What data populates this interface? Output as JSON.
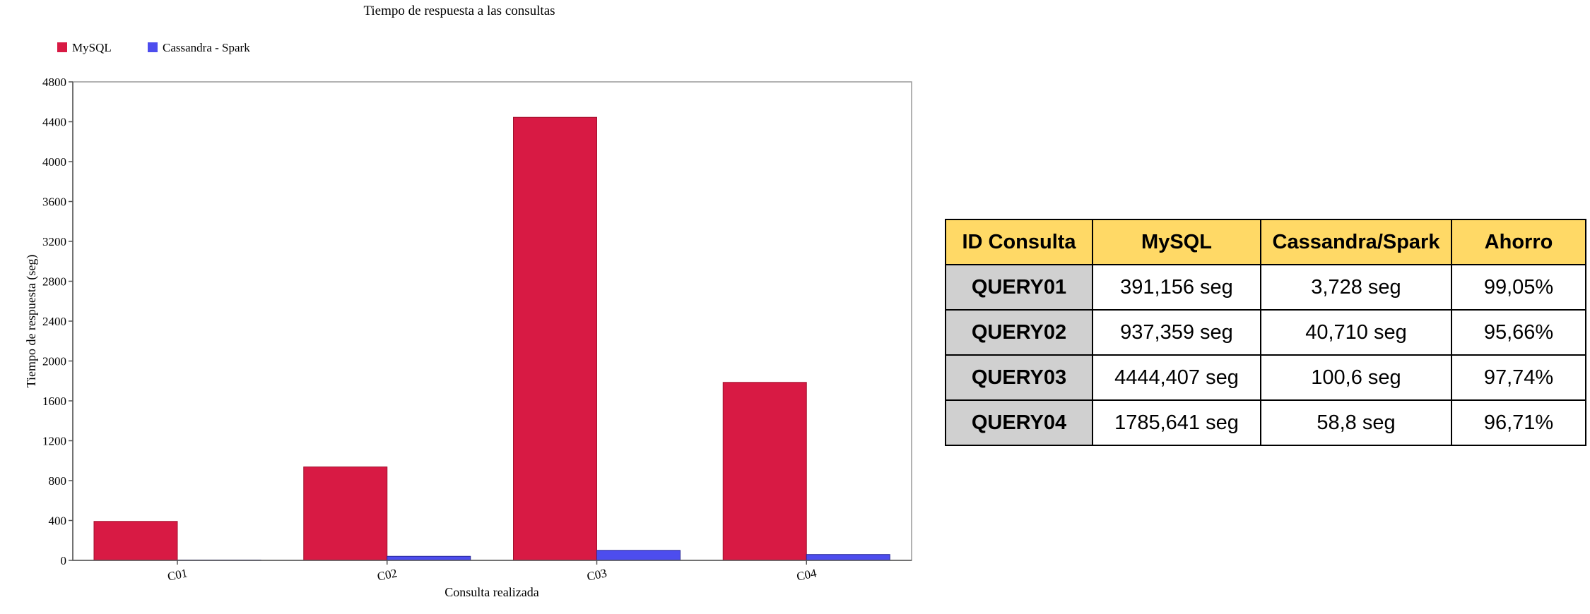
{
  "chart_data": {
    "type": "bar",
    "title": "Tiempo de respuesta a las consultas",
    "xlabel": "Consulta realizada",
    "ylabel": "Tiempo de respuesta (seg)",
    "categories": [
      "C01",
      "C02",
      "C03",
      "C04"
    ],
    "series": [
      {
        "name": "MySQL",
        "color": "#d81a44",
        "values": [
          391.156,
          937.359,
          4444.407,
          1785.641
        ]
      },
      {
        "name": "Cassandra - Spark",
        "color": "#4d4dee",
        "values": [
          3.728,
          40.71,
          100.6,
          58.8
        ]
      }
    ],
    "ylim": [
      0,
      4800
    ],
    "yticks": [
      "0",
      "400",
      "800",
      "1200",
      "1600",
      "2000",
      "2400",
      "2800",
      "3200",
      "3600",
      "4000",
      "4400",
      "4800"
    ],
    "legend": "top-left",
    "grid": false
  },
  "table": {
    "headers": [
      "ID Consulta",
      "MySQL",
      "Cassandra/Spark",
      "Ahorro"
    ],
    "rows": [
      [
        "QUERY01",
        "391,156 seg",
        "3,728 seg",
        "99,05%"
      ],
      [
        "QUERY02",
        "937,359 seg",
        "40,710 seg",
        "95,66%"
      ],
      [
        "QUERY03",
        "4444,407 seg",
        "100,6 seg",
        "97,74%"
      ],
      [
        "QUERY04",
        "1785,641 seg",
        "58,8 seg",
        "96,71%"
      ]
    ],
    "header_color": "#ffd966",
    "id_cell_color": "#d0d0d0"
  }
}
